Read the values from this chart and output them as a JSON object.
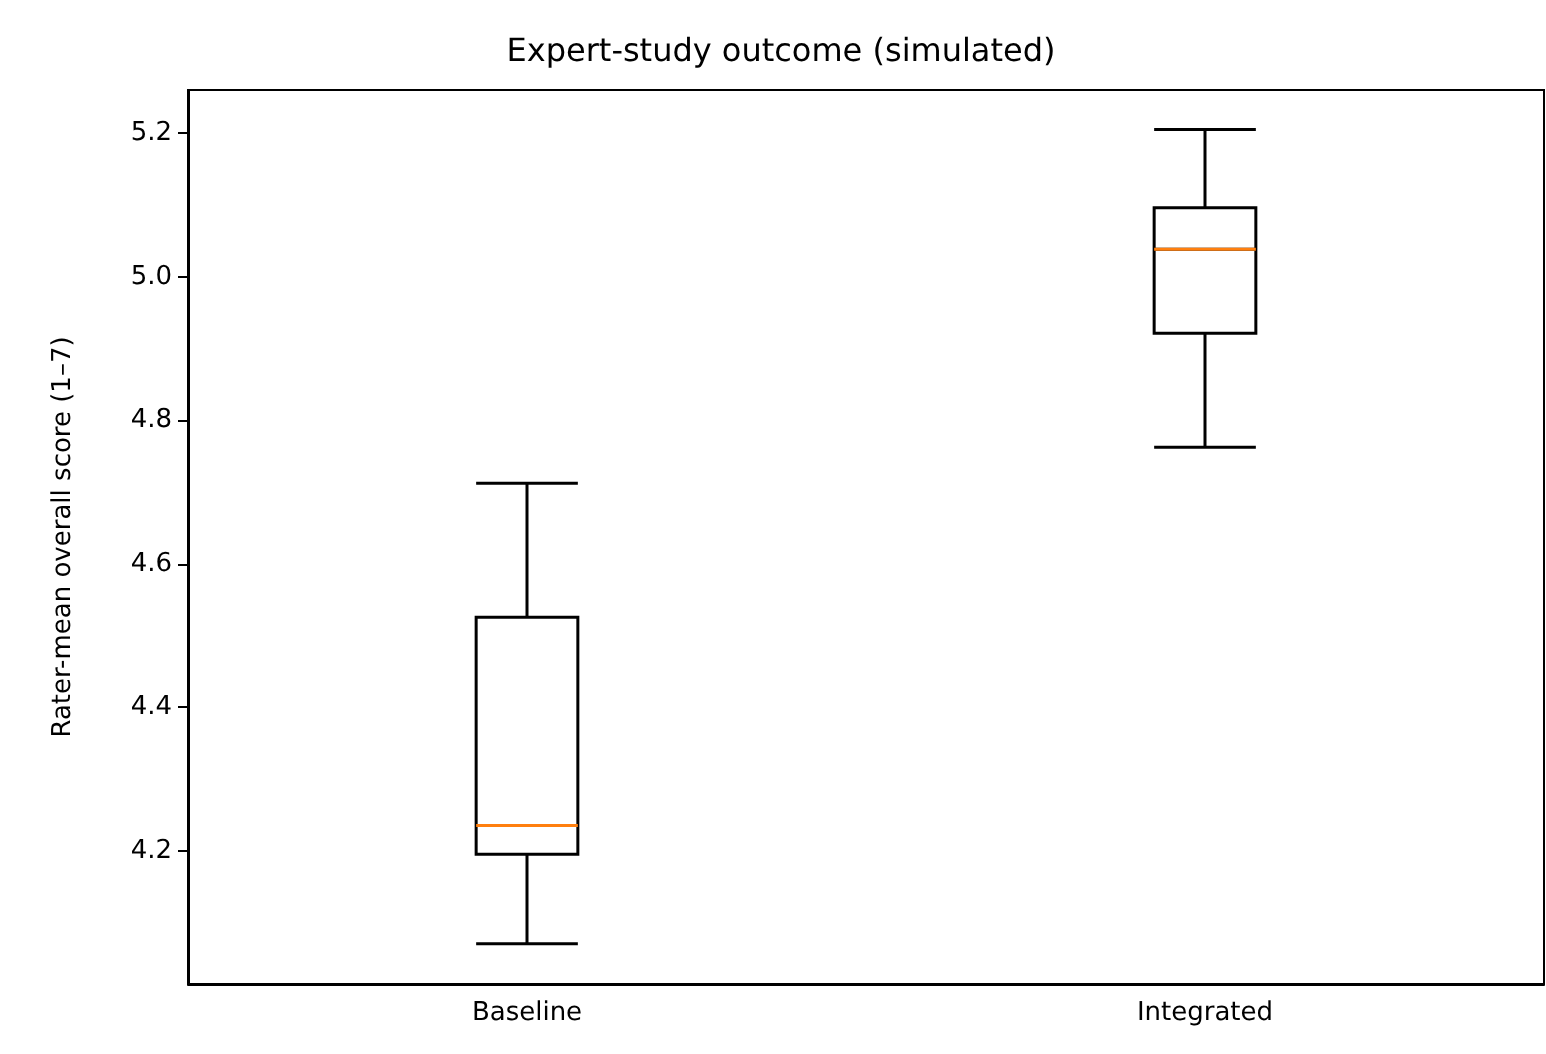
{
  "chart_data": {
    "type": "box",
    "title": "Expert-study outcome (simulated)",
    "ylabel": "Rater-mean overall score (1–7)",
    "categories": [
      "Baseline",
      "Integrated"
    ],
    "boxes": [
      {
        "low": 4.07,
        "q1": 4.195,
        "median": 4.235,
        "q3": 4.525,
        "high": 4.712
      },
      {
        "low": 4.762,
        "q1": 4.921,
        "median": 5.038,
        "q3": 5.096,
        "high": 5.205
      }
    ],
    "color": "#000000",
    "ylim": [
      4.014,
      5.26
    ],
    "yticks": [
      4.2,
      4.4,
      4.6,
      4.8,
      {
        "value": 5,
        "label": "5.0"
      },
      5.2
    ],
    "grid": false
  }
}
